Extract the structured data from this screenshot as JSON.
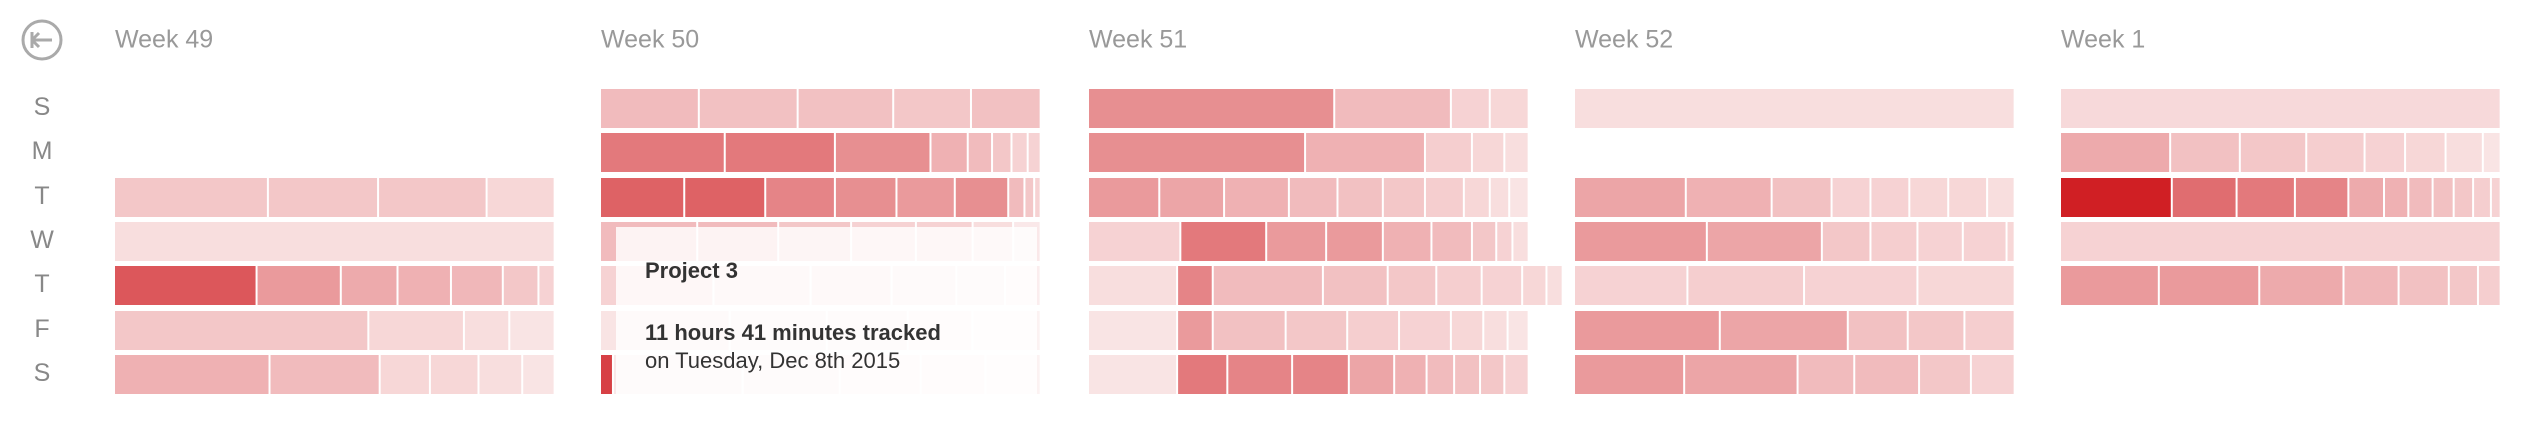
{
  "weeks": [
    {
      "label": "Week 49"
    },
    {
      "label": "Week 50"
    },
    {
      "label": "Week 51"
    },
    {
      "label": "Week 52"
    },
    {
      "label": "Week 1"
    }
  ],
  "days": [
    "S",
    "M",
    "T",
    "W",
    "T",
    "F",
    "S"
  ],
  "tooltip": {
    "project": "Project 3",
    "tracked": "11 hours 41 minutes tracked",
    "date": "on Tuesday, Dec 8th 2015"
  }
}
